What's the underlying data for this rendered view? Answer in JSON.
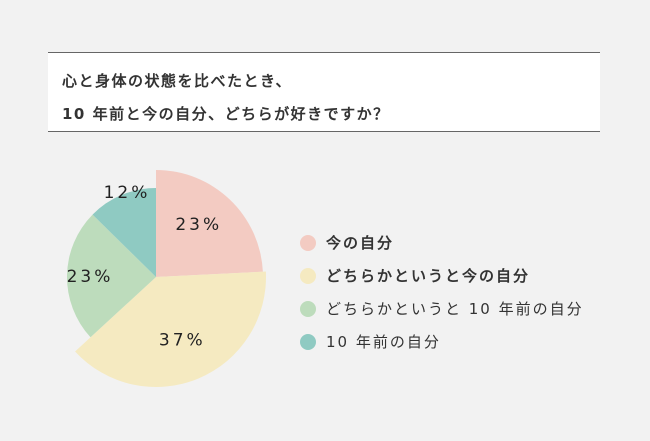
{
  "title_lines": [
    "心と身体の状態を比べたとき、",
    "10 年前と今の自分、どちらが好きですか？"
  ],
  "chart_data": {
    "type": "pie",
    "title": "心と身体の状態を比べたとき、10 年前と今の自分、どちらが好きですか？",
    "categories": [
      "今の自分",
      "どちらかというと今の自分",
      "どちらかというと 10 年前の自分",
      "10 年前の自分"
    ],
    "values": [
      23,
      37,
      23,
      12
    ],
    "labels": [
      "23%",
      "37%",
      "23%",
      "12%"
    ],
    "colors": [
      "#f3cbc2",
      "#f5eac1",
      "#bddcbc",
      "#8fcac2"
    ],
    "legend_placement": "right",
    "start": "top, clockwise"
  }
}
